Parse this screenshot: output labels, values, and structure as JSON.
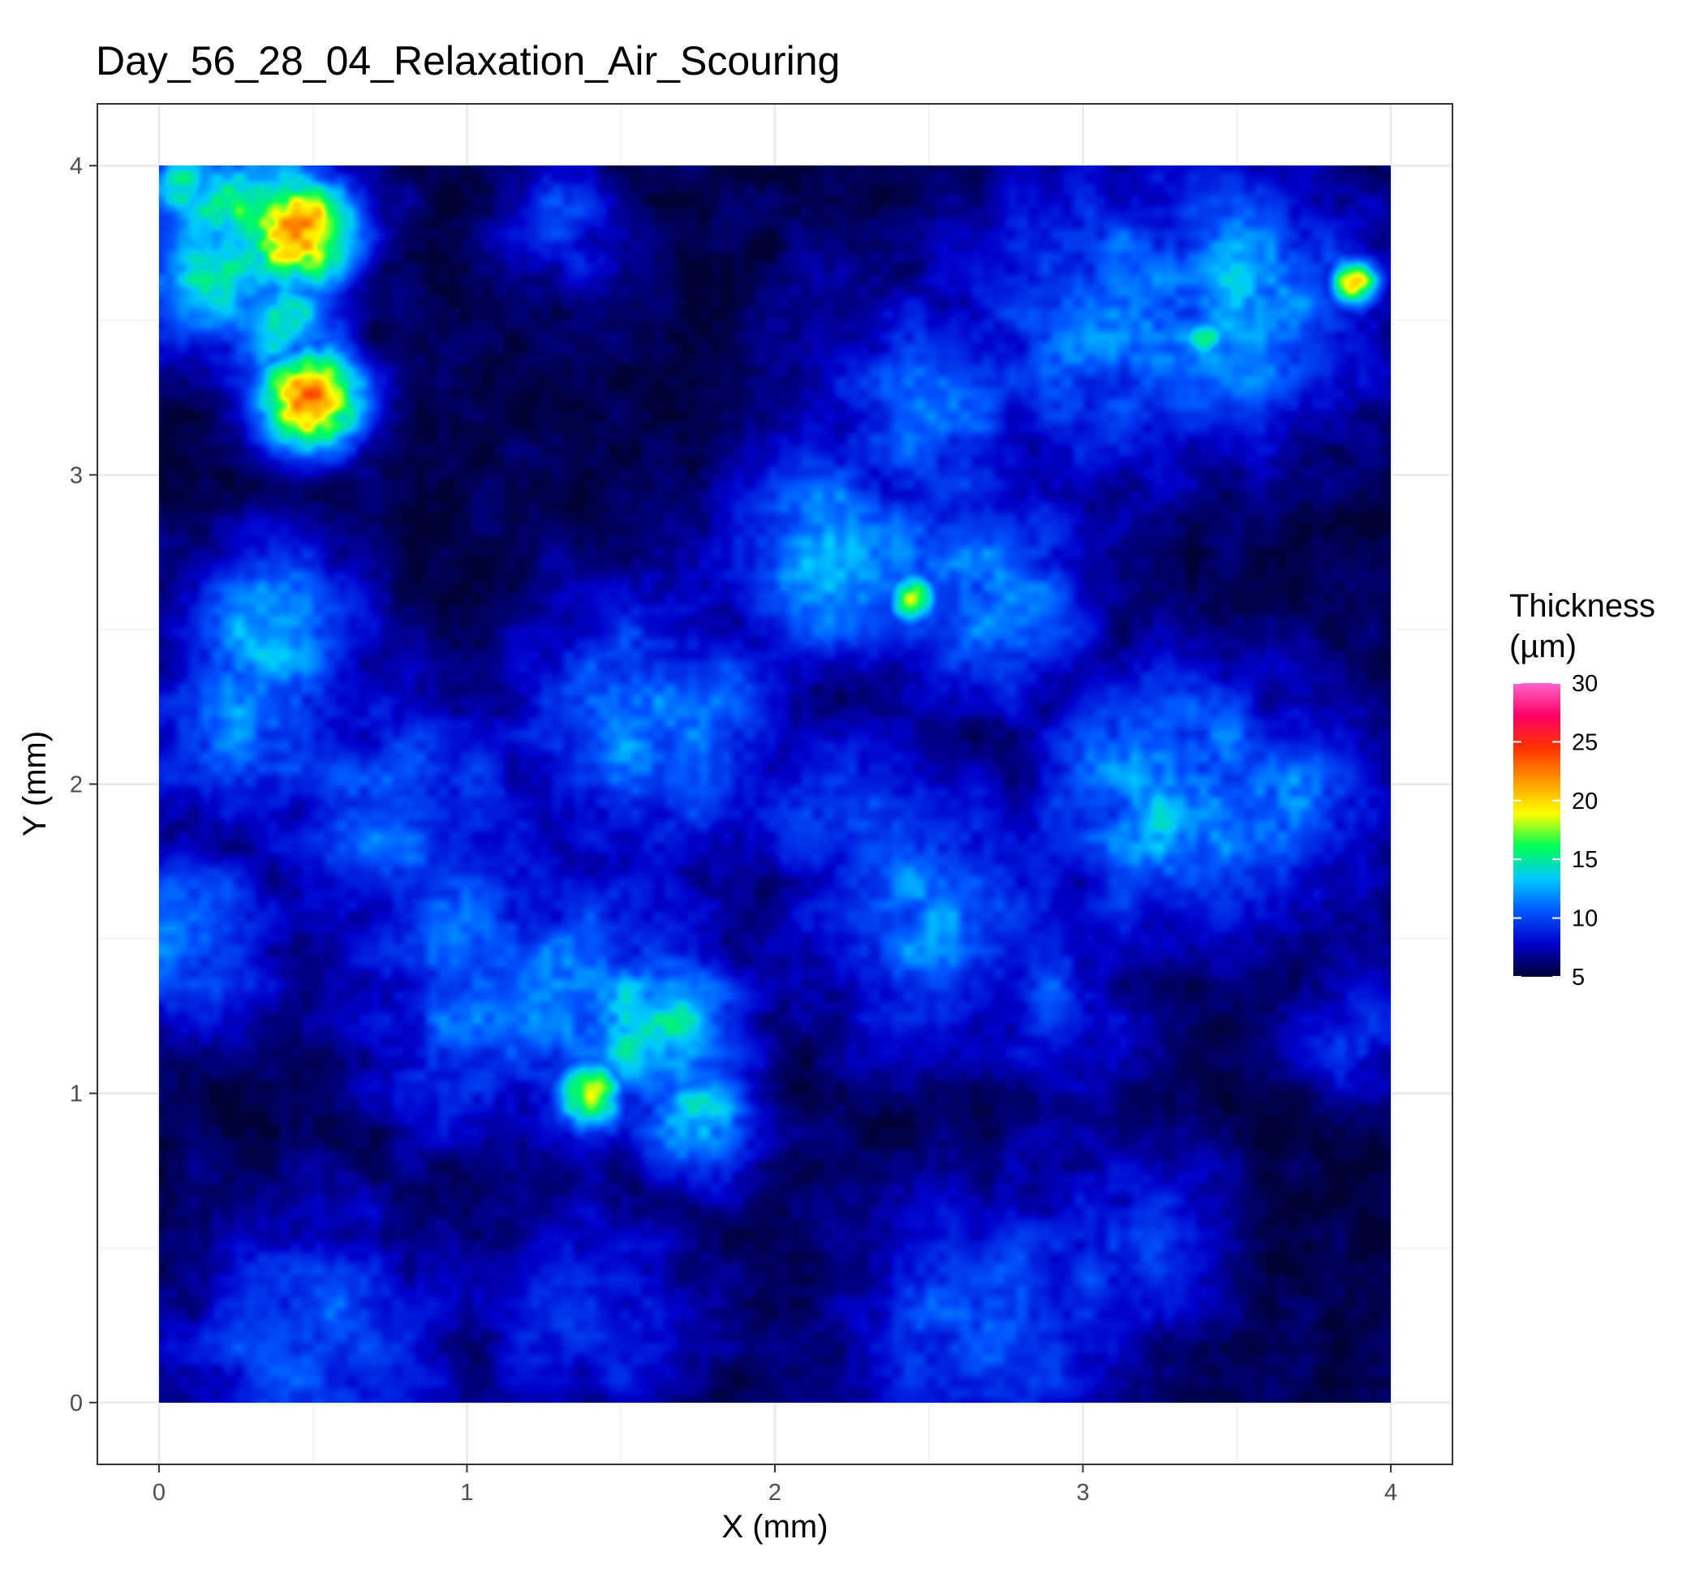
{
  "chart_data": {
    "type": "heatmap",
    "title": "Day_56_28_04_Relaxation_Air_Scouring",
    "xlabel": "X (mm)",
    "ylabel": "Y (mm)",
    "xlim": [
      -0.2,
      4.2
    ],
    "ylim": [
      -0.2,
      4.2
    ],
    "x_ticks": [
      0,
      1,
      2,
      3,
      4
    ],
    "y_ticks": [
      0,
      1,
      2,
      3,
      4
    ],
    "x_tick_labels": [
      "0",
      "1",
      "2",
      "3",
      "4"
    ],
    "y_tick_labels": [
      "0",
      "1",
      "2",
      "3",
      "4"
    ],
    "grid": true,
    "data_extent": {
      "x": [
        0,
        4
      ],
      "y": [
        0,
        4
      ]
    },
    "background_value": 7,
    "colorbar": {
      "title_lines": [
        "Thickness",
        "(µm)"
      ],
      "min": 5,
      "max": 30,
      "ticks": [
        5,
        10,
        15,
        20,
        25,
        30
      ],
      "tick_labels": [
        "5",
        "10",
        "15",
        "20",
        "25",
        "30"
      ],
      "colors": [
        "#000033",
        "#0000c8",
        "#0055ff",
        "#00c8ff",
        "#00ff55",
        "#ffff00",
        "#ff9900",
        "#ff3300",
        "#ff0066",
        "#ff66cc"
      ],
      "placement": "right"
    },
    "features": [
      {
        "x": 0.45,
        "y": 3.78,
        "value": 25,
        "spread": 0.13
      },
      {
        "x": 0.5,
        "y": 3.25,
        "value": 24,
        "spread": 0.12
      },
      {
        "x": 0.3,
        "y": 3.8,
        "value": 17,
        "spread": 0.22
      },
      {
        "x": 0.15,
        "y": 3.65,
        "value": 15,
        "spread": 0.18
      },
      {
        "x": 0.4,
        "y": 3.5,
        "value": 15,
        "spread": 0.15
      },
      {
        "x": 0.35,
        "y": 2.5,
        "value": 14,
        "spread": 0.2
      },
      {
        "x": 0.3,
        "y": 2.2,
        "value": 13,
        "spread": 0.25
      },
      {
        "x": 0.1,
        "y": 1.5,
        "value": 13,
        "spread": 0.2
      },
      {
        "x": 0.8,
        "y": 1.9,
        "value": 12,
        "spread": 0.3
      },
      {
        "x": 1.4,
        "y": 1.0,
        "value": 21,
        "spread": 0.08
      },
      {
        "x": 1.6,
        "y": 1.2,
        "value": 16,
        "spread": 0.2
      },
      {
        "x": 1.75,
        "y": 0.9,
        "value": 15,
        "spread": 0.14
      },
      {
        "x": 1.4,
        "y": 1.3,
        "value": 13,
        "spread": 0.3
      },
      {
        "x": 1.0,
        "y": 1.5,
        "value": 12,
        "spread": 0.3
      },
      {
        "x": 1.0,
        "y": 1.2,
        "value": 12,
        "spread": 0.25
      },
      {
        "x": 1.6,
        "y": 2.2,
        "value": 13,
        "spread": 0.3
      },
      {
        "x": 2.2,
        "y": 2.75,
        "value": 14,
        "spread": 0.25
      },
      {
        "x": 2.45,
        "y": 2.6,
        "value": 18,
        "spread": 0.06
      },
      {
        "x": 2.5,
        "y": 3.2,
        "value": 12,
        "spread": 0.3
      },
      {
        "x": 2.7,
        "y": 2.6,
        "value": 13,
        "spread": 0.25
      },
      {
        "x": 3.1,
        "y": 3.5,
        "value": 13,
        "spread": 0.35
      },
      {
        "x": 3.5,
        "y": 3.55,
        "value": 14,
        "spread": 0.3
      },
      {
        "x": 3.88,
        "y": 3.62,
        "value": 20,
        "spread": 0.06
      },
      {
        "x": 3.4,
        "y": 3.45,
        "value": 16,
        "spread": 0.06
      },
      {
        "x": 3.3,
        "y": 1.95,
        "value": 14,
        "spread": 0.3
      },
      {
        "x": 3.6,
        "y": 1.9,
        "value": 13,
        "spread": 0.25
      },
      {
        "x": 2.5,
        "y": 1.6,
        "value": 13,
        "spread": 0.3
      },
      {
        "x": 2.2,
        "y": 1.9,
        "value": 11,
        "spread": 0.25
      },
      {
        "x": 2.9,
        "y": 1.3,
        "value": 11,
        "spread": 0.2
      },
      {
        "x": 2.7,
        "y": 0.25,
        "value": 12,
        "spread": 0.3
      },
      {
        "x": 3.1,
        "y": 0.5,
        "value": 11,
        "spread": 0.25
      },
      {
        "x": 0.5,
        "y": 0.2,
        "value": 12,
        "spread": 0.3
      },
      {
        "x": 1.4,
        "y": 0.3,
        "value": 11,
        "spread": 0.25
      },
      {
        "x": 1.3,
        "y": 3.8,
        "value": 11,
        "spread": 0.15
      },
      {
        "x": 3.9,
        "y": 1.2,
        "value": 11,
        "spread": 0.15
      },
      {
        "x": 0.05,
        "y": 3.95,
        "value": 16,
        "spread": 0.1
      }
    ]
  }
}
